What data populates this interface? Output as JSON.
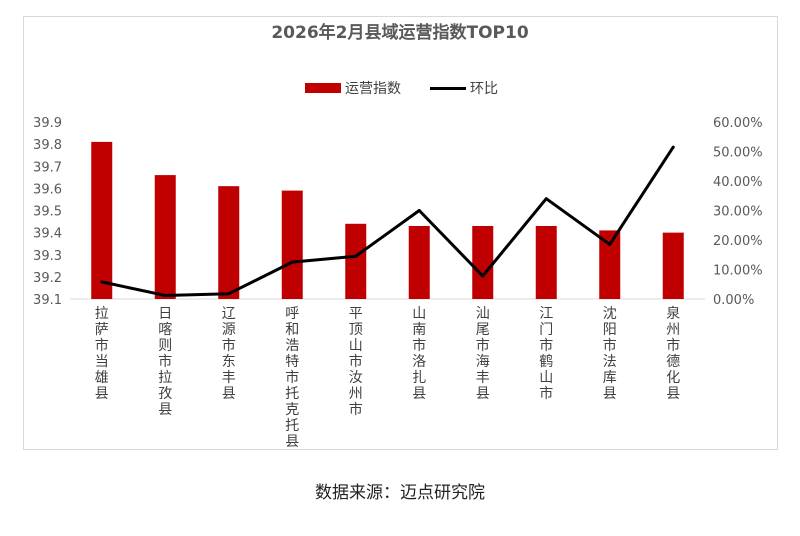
{
  "chart_data": {
    "type": "bar",
    "title": "2026年2月县域运营指数TOP10",
    "categories": [
      "拉萨市当雄县",
      "日喀则市拉孜县",
      "辽源市东丰县",
      "呼和浩特市托克托县",
      "平顶山市汝州市",
      "山南市洛扎县",
      "汕尾市海丰县",
      "江门市鹤山市",
      "沈阳市法库县",
      "泉州市德化县"
    ],
    "series": [
      {
        "name": "运营指数",
        "type": "bar",
        "axis": "left",
        "color": "#c00000",
        "values": [
          39.81,
          39.66,
          39.61,
          39.59,
          39.44,
          39.43,
          39.43,
          39.43,
          39.41,
          39.4
        ]
      },
      {
        "name": "环比",
        "type": "line",
        "axis": "right",
        "color": "#000000",
        "values": [
          5.8,
          1.2,
          1.8,
          12.5,
          14.5,
          30.0,
          7.8,
          34.0,
          18.5,
          51.5
        ]
      }
    ],
    "y_left": {
      "min": 39.1,
      "max": 39.9,
      "ticks": [
        "39.1",
        "39.2",
        "39.3",
        "39.4",
        "39.5",
        "39.6",
        "39.7",
        "39.8",
        "39.9"
      ]
    },
    "y_right": {
      "min": 0,
      "max": 60,
      "ticks": [
        "0.00%",
        "10.00%",
        "20.00%",
        "30.00%",
        "40.00%",
        "50.00%",
        "60.00%"
      ]
    },
    "grid": false,
    "legend_position": "top"
  },
  "source": "数据来源：迈点研究院"
}
